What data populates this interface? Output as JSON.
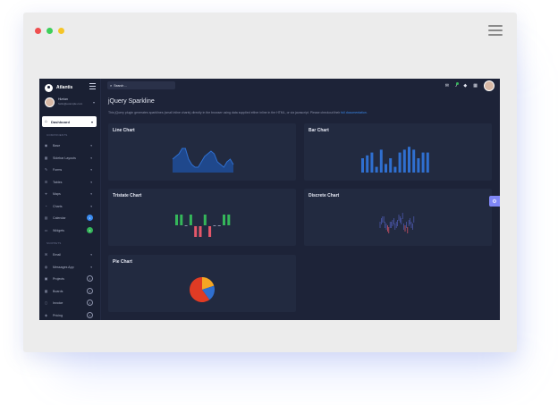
{
  "app": {
    "brand": "Atlantis",
    "search_placeholder": "Search ...",
    "user": {
      "name": "Hizrian",
      "email": "hello@example.com"
    }
  },
  "sidebar": {
    "dashboard_label": "Dashboard",
    "sections": {
      "components": "COMPONENTS",
      "snippets": "SNIPPETS"
    },
    "items": [
      {
        "label": "Base",
        "icon": "layers-icon",
        "glyph": "◉",
        "suffix": "caret"
      },
      {
        "label": "Sidebar Layouts",
        "icon": "grid-icon",
        "glyph": "▦",
        "suffix": "caret"
      },
      {
        "label": "Forms",
        "icon": "pen-square-icon",
        "glyph": "✎",
        "suffix": "caret"
      },
      {
        "label": "Tables",
        "icon": "table-icon",
        "glyph": "☰",
        "suffix": "caret"
      },
      {
        "label": "Maps",
        "icon": "map-marker-icon",
        "glyph": "⌖",
        "suffix": "caret"
      },
      {
        "label": "Charts",
        "icon": "chart-icon",
        "glyph": "◔",
        "suffix": "caret"
      },
      {
        "label": "Calendar",
        "icon": "calendar-icon",
        "glyph": "▤",
        "suffix": "badge",
        "badge": "1",
        "badge_color": "#3b8cf0"
      },
      {
        "label": "Widgets",
        "icon": "desktop-icon",
        "glyph": "▭",
        "suffix": "badge",
        "badge": "4",
        "badge_color": "#35b65a"
      },
      {
        "label": "Email",
        "icon": "envelope-icon",
        "glyph": "✉",
        "suffix": "caret"
      },
      {
        "label": "Messages App",
        "icon": "comment-icon",
        "glyph": "◍",
        "suffix": "caret"
      },
      {
        "label": "Projects",
        "icon": "folder-icon",
        "glyph": "▣",
        "suffix": "ring",
        "badge": "3"
      },
      {
        "label": "Boards",
        "icon": "th-icon",
        "glyph": "▦",
        "suffix": "ring",
        "badge": "4"
      },
      {
        "label": "Invoice",
        "icon": "file-icon",
        "glyph": "▯",
        "suffix": "ring",
        "badge": "4"
      },
      {
        "label": "Pricing",
        "icon": "tag-icon",
        "glyph": "◈",
        "suffix": "ring",
        "badge": "6"
      }
    ]
  },
  "page": {
    "title": "jQuery Sparkline",
    "description": "This jQuery plugin generates sparklines (small inline charts) directly in the browser using data supplied either inline in the HTML, or via javascript. Please checkout their",
    "doc_link": "full documentation."
  },
  "cards": {
    "line": "Line Chart",
    "bar": "Bar Chart",
    "tristate": "Tristate Chart",
    "discrete": "Discrete Chart",
    "pie": "Pie Chart"
  },
  "colors": {
    "line_fill": "#1f4e9a",
    "line_stroke": "#2f6fd0",
    "bar": "#2f6fd0",
    "tristate_pos": "#35b65a",
    "tristate_neg": "#e5576a",
    "tristate_zero": "#8d93ab",
    "discrete": "#4f5cb6",
    "discrete_low": "#e5576a",
    "pie": [
      "#f5a623",
      "#2f6fd0",
      "#e03b24"
    ]
  },
  "chart_data": [
    {
      "type": "area",
      "title": "Line Chart",
      "values": [
        5,
        6,
        7,
        9,
        9,
        5,
        3,
        2,
        2,
        4,
        6,
        7,
        8,
        7,
        4,
        3,
        2,
        4,
        5,
        3
      ]
    },
    {
      "type": "bar",
      "title": "Bar Chart",
      "values": [
        5,
        6,
        7,
        2,
        8,
        3,
        5,
        2,
        7,
        8,
        9,
        8,
        5,
        7,
        7
      ]
    },
    {
      "type": "bar",
      "title": "Tristate Chart",
      "values": [
        1,
        1,
        0,
        1,
        -1,
        -1,
        1,
        -1,
        0,
        0,
        1,
        1
      ]
    },
    {
      "type": "bar",
      "title": "Discrete Chart",
      "values": [
        4,
        6,
        7,
        7,
        4,
        3,
        2,
        1,
        4,
        4,
        5,
        6,
        3,
        4,
        5,
        8,
        7,
        6,
        9,
        3,
        2,
        4,
        1,
        5,
        6,
        4,
        3,
        7
      ]
    },
    {
      "type": "pie",
      "title": "Pie Chart",
      "values": [
        20,
        20,
        60
      ]
    }
  ]
}
